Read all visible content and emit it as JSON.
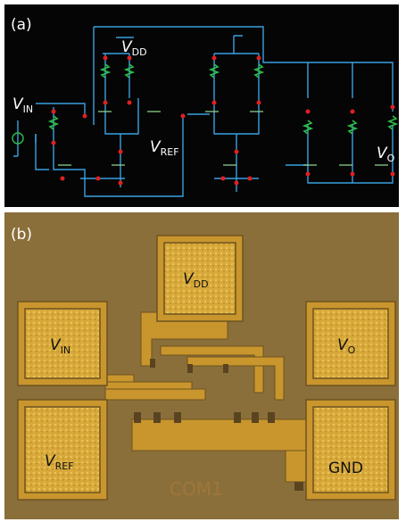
{
  "panel_a": {
    "label": "(a)",
    "labels": {
      "vdd": {
        "main": "V",
        "sub": "DD"
      },
      "vin": {
        "main": "V",
        "sub": "IN"
      },
      "vref": {
        "main": "V",
        "sub": "REF"
      },
      "vo": {
        "main": "V",
        "sub": "O"
      }
    }
  },
  "panel_b": {
    "label": "(b)",
    "pads": [
      {
        "main": "V",
        "sub": "DD"
      },
      {
        "main": "V",
        "sub": "IN"
      },
      {
        "main": "V",
        "sub": "O"
      },
      {
        "main": "V",
        "sub": "REF"
      },
      {
        "main": "GND"
      }
    ],
    "chip_text": "COM1"
  }
}
